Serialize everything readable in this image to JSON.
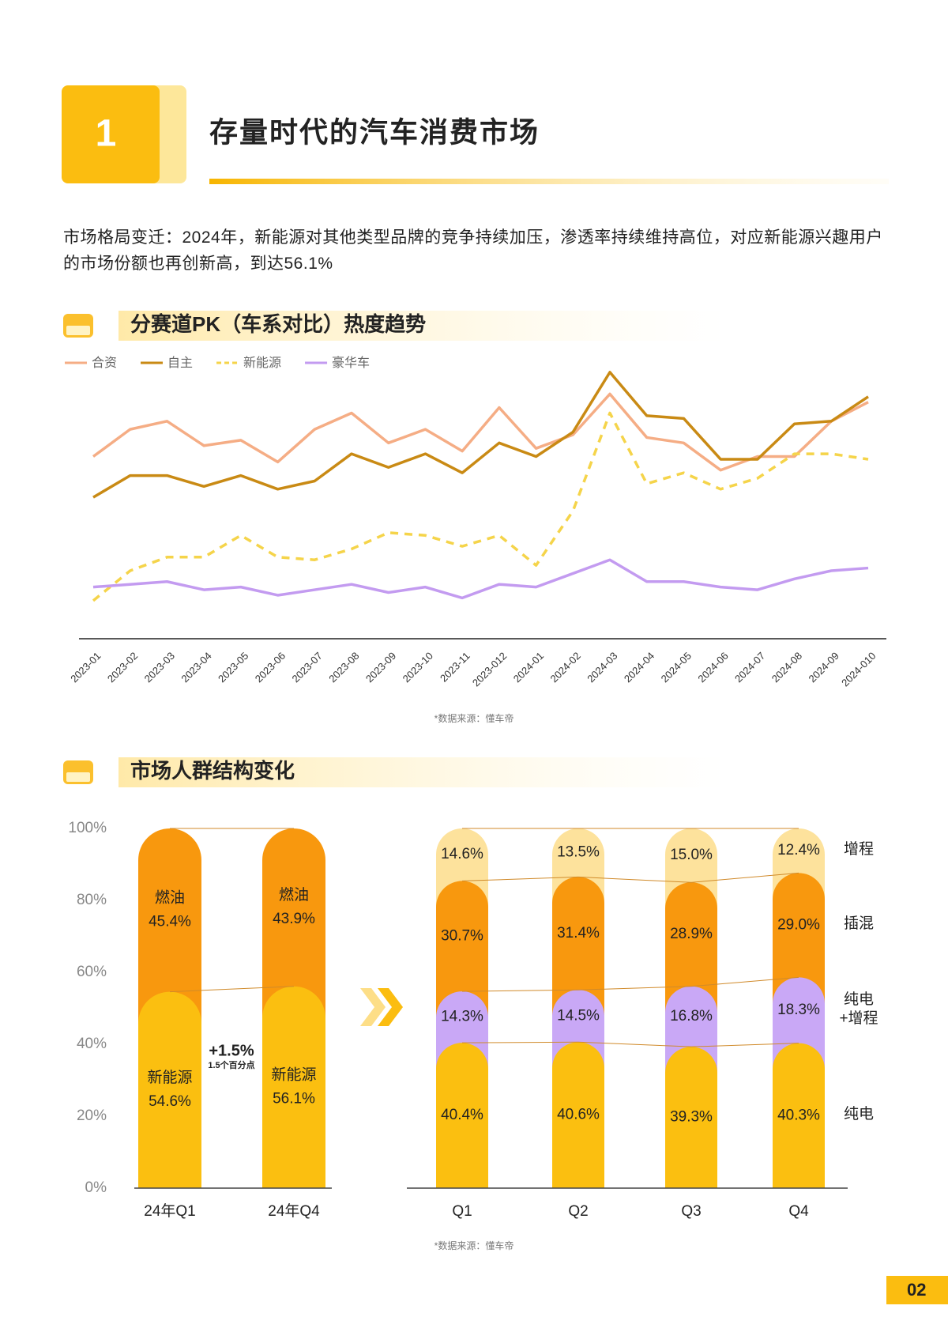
{
  "header": {
    "number": "1",
    "title": "存量时代的汽车消费市场"
  },
  "intro": "市场格局变迁：2024年，新能源对其他类型品牌的竞争持续加压，渗透率持续维持高位，对应新能源兴趣用户的市场份额也再创新高，到达56.1%",
  "chart_data": [
    {
      "type": "line",
      "title": "分赛道PK（车系对比）热度趋势",
      "categories": [
        "2023-01",
        "2023-02",
        "2023-03",
        "2023-04",
        "2023-05",
        "2023-06",
        "2023-07",
        "2023-08",
        "2023-09",
        "2023-10",
        "2023-11",
        "2023-012",
        "2024-01",
        "2024-02",
        "2024-03",
        "2024-04",
        "2024-05",
        "2024-06",
        "2024-07",
        "2024-08",
        "2024-09",
        "2024-010"
      ],
      "series": [
        {
          "name": "合资",
          "color": "#f5ad85",
          "dash": false,
          "values": [
            67,
            77,
            80,
            71,
            73,
            65,
            77,
            83,
            72,
            77,
            69,
            85,
            70,
            75,
            90,
            74,
            72,
            62,
            67,
            67,
            80,
            87
          ]
        },
        {
          "name": "自主",
          "color": "#c98a14",
          "dash": false,
          "values": [
            52,
            60,
            60,
            56,
            60,
            55,
            58,
            68,
            63,
            68,
            61,
            72,
            67,
            76,
            98,
            82,
            81,
            66,
            66,
            79,
            80,
            89
          ]
        },
        {
          "name": "新能源",
          "color": "#f5d44a",
          "dash": true,
          "values": [
            14,
            25,
            30,
            30,
            38,
            30,
            29,
            33,
            39,
            38,
            34,
            38,
            27,
            47,
            83,
            57,
            61,
            55,
            59,
            68,
            68,
            66
          ]
        },
        {
          "name": "豪华车",
          "color": "#c39bf0",
          "dash": false,
          "values": [
            19,
            20,
            21,
            18,
            19,
            16,
            18,
            20,
            17,
            19,
            15,
            20,
            19,
            24,
            29,
            21,
            21,
            19,
            18,
            22,
            25,
            26
          ]
        }
      ],
      "ylim": [
        0,
        100
      ],
      "legend": "top-left",
      "source": "*数据来源：懂车帝"
    },
    {
      "type": "bar",
      "stacked": true,
      "title": "市场人群结构变化",
      "categories": [
        "24年Q1",
        "24年Q4"
      ],
      "series": [
        {
          "name": "新能源",
          "color": "#fbbf10",
          "values": [
            54.6,
            56.1
          ],
          "value_labels": [
            "54.6%",
            "56.1%"
          ]
        },
        {
          "name": "燃油",
          "color": "#f8980e",
          "values": [
            45.4,
            43.9
          ],
          "value_labels": [
            "45.4%",
            "43.9%"
          ]
        }
      ],
      "ylim": [
        0,
        100
      ],
      "yticks": [
        {
          "value": 0,
          "label": "0%"
        },
        {
          "value": 20,
          "label": "20%"
        },
        {
          "value": 40,
          "label": "40%"
        },
        {
          "value": 60,
          "label": "60%"
        },
        {
          "value": 80,
          "label": "80%"
        },
        {
          "value": 100,
          "label": "100%"
        }
      ],
      "names_in_bars": true,
      "annotations": [
        "+1.5%",
        "1.5个百分点"
      ]
    },
    {
      "type": "bar",
      "stacked": true,
      "categories": [
        "Q1",
        "Q2",
        "Q3",
        "Q4"
      ],
      "series": [
        {
          "name": "纯电",
          "color": "#fbbf10",
          "values": [
            40.4,
            40.6,
            39.3,
            40.3
          ],
          "value_labels": [
            "40.4%",
            "40.6%",
            "39.3%",
            "40.3%"
          ]
        },
        {
          "name": "纯电\n+增程",
          "color": "#c9a8f6",
          "values": [
            14.3,
            14.5,
            16.8,
            18.3
          ],
          "value_labels": [
            "14.3%",
            "14.5%",
            "16.8%",
            "18.3%"
          ]
        },
        {
          "name": "插混",
          "color": "#f8980e",
          "values": [
            30.7,
            31.4,
            28.9,
            29.0
          ],
          "value_labels": [
            "30.7%",
            "31.4%",
            "28.9%",
            "29.0%"
          ]
        },
        {
          "name": "增程",
          "color": "#fde29c",
          "values": [
            14.6,
            13.5,
            15.0,
            12.4
          ],
          "value_labels": [
            "14.6%",
            "13.5%",
            "15.0%",
            "12.4%"
          ]
        }
      ],
      "ylim": [
        0,
        100
      ],
      "legend": "right",
      "source": "*数据来源：懂车帝"
    }
  ],
  "page_number": "02"
}
